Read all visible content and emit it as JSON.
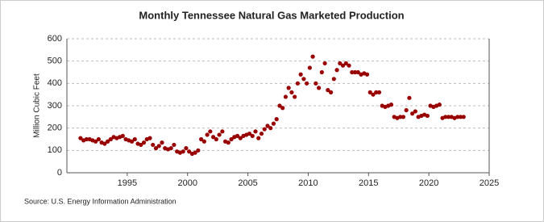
{
  "chart_data": {
    "type": "scatter",
    "title": "Monthly Tennessee Natural Gas Marketed Production",
    "y_label": "Million Cubic Feet",
    "source": "Source: U.S. Energy Information Administration",
    "xlim": [
      1990,
      2025
    ],
    "xticks": [
      1995,
      2000,
      2005,
      2010,
      2015,
      2020,
      2025
    ],
    "ylim": [
      0,
      600
    ],
    "yticks": [
      0,
      100,
      200,
      300,
      400,
      500,
      600
    ],
    "grid": true,
    "series": [
      {
        "color": "#990000",
        "x": [
          1991.13,
          1991.38,
          1991.63,
          1991.88,
          1992.13,
          1992.38,
          1992.63,
          1992.88,
          1993.13,
          1993.38,
          1993.63,
          1993.88,
          1994.13,
          1994.38,
          1994.63,
          1994.88,
          1995.13,
          1995.38,
          1995.63,
          1995.88,
          1996.13,
          1996.38,
          1996.63,
          1996.88,
          1997.13,
          1997.38,
          1997.63,
          1997.88,
          1998.13,
          1998.38,
          1998.63,
          1998.88,
          1999.13,
          1999.38,
          1999.63,
          1999.88,
          2000.13,
          2000.38,
          2000.63,
          2000.88,
          2001.13,
          2001.38,
          2001.63,
          2001.88,
          2002.13,
          2002.38,
          2002.63,
          2002.88,
          2003.13,
          2003.38,
          2003.63,
          2003.88,
          2004.13,
          2004.38,
          2004.63,
          2004.88,
          2005.13,
          2005.38,
          2005.63,
          2005.88,
          2006.13,
          2006.38,
          2006.63,
          2006.88,
          2007.13,
          2007.38,
          2007.63,
          2007.88,
          2008.13,
          2008.38,
          2008.63,
          2008.88,
          2009.13,
          2009.38,
          2009.63,
          2009.88,
          2010.13,
          2010.38,
          2010.63,
          2010.88,
          2011.13,
          2011.38,
          2011.63,
          2011.88,
          2012.13,
          2012.38,
          2012.63,
          2012.88,
          2013.13,
          2013.38,
          2013.63,
          2013.88,
          2014.13,
          2014.38,
          2014.63,
          2014.88,
          2015.13,
          2015.38,
          2015.63,
          2015.88,
          2016.13,
          2016.38,
          2016.63,
          2016.88,
          2017.13,
          2017.38,
          2017.63,
          2017.88,
          2018.13,
          2018.38,
          2018.63,
          2018.88,
          2019.13,
          2019.38,
          2019.63,
          2019.88,
          2020.13,
          2020.38,
          2020.63,
          2020.88,
          2021.13,
          2021.38,
          2021.63,
          2021.88,
          2022.13,
          2022.38,
          2022.63,
          2022.88
        ],
        "values": [
          155,
          145,
          150,
          150,
          145,
          140,
          150,
          135,
          130,
          140,
          150,
          160,
          155,
          160,
          165,
          150,
          145,
          140,
          150,
          130,
          125,
          135,
          150,
          155,
          125,
          110,
          120,
          135,
          110,
          105,
          110,
          125,
          95,
          90,
          95,
          110,
          95,
          85,
          90,
          100,
          150,
          140,
          170,
          185,
          160,
          150,
          170,
          185,
          140,
          135,
          150,
          160,
          165,
          155,
          165,
          170,
          175,
          165,
          185,
          155,
          175,
          195,
          210,
          200,
          220,
          240,
          300,
          290,
          340,
          380,
          360,
          340,
          400,
          440,
          420,
          400,
          470,
          520,
          400,
          380,
          450,
          490,
          370,
          360,
          420,
          460,
          490,
          480,
          490,
          480,
          450,
          450,
          450,
          440,
          445,
          440,
          360,
          350,
          360,
          360,
          300,
          295,
          300,
          305,
          250,
          245,
          250,
          250,
          280,
          335,
          265,
          275,
          250,
          255,
          260,
          255,
          300,
          295,
          300,
          305,
          245,
          250,
          250,
          250,
          245,
          250,
          250,
          250
        ]
      }
    ]
  }
}
